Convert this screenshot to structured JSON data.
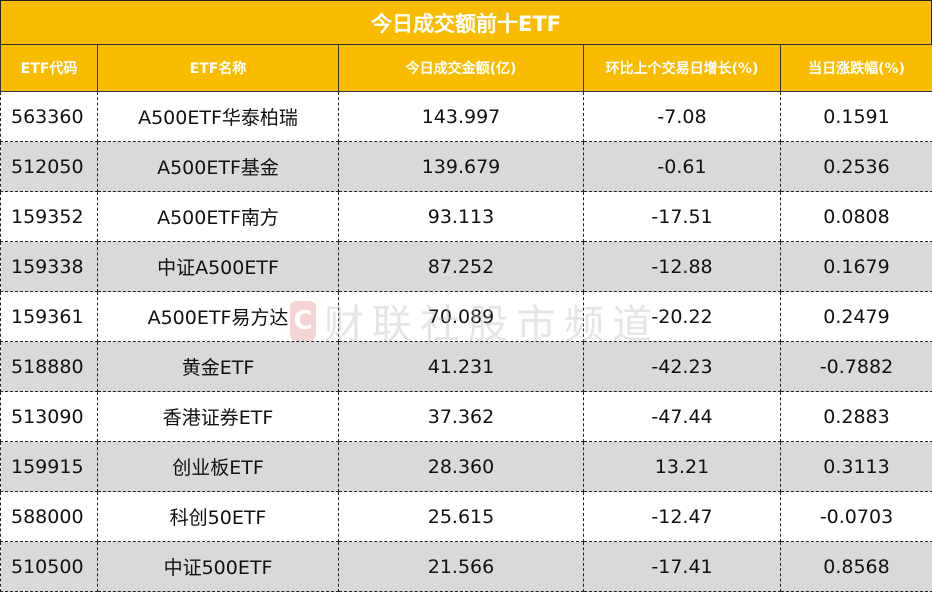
{
  "title": "今日成交额前十ETF",
  "headers": [
    "ETF代码",
    "ETF名称",
    "今日成交金额(亿)",
    "环比上个交易日增长(%)",
    "当日涨跌幅(%)"
  ],
  "rows": [
    [
      "563360",
      "A500ETF华泰柏瑞",
      "143.997",
      "-7.08",
      "0.1591"
    ],
    [
      "512050",
      "A500ETF基金",
      "139.679",
      "-0.61",
      "0.2536"
    ],
    [
      "159352",
      "A500ETF南方",
      "93.113",
      "-17.51",
      "0.0808"
    ],
    [
      "159338",
      "中证A500ETF",
      "87.252",
      "-12.88",
      "0.1679"
    ],
    [
      "159361",
      "A500ETF易方达",
      "70.089",
      "-20.22",
      "0.2479"
    ],
    [
      "518880",
      "黄金ETF",
      "41.231",
      "-42.23",
      "-0.7882"
    ],
    [
      "513090",
      "香港证券ETF",
      "37.362",
      "-47.44",
      "0.2883"
    ],
    [
      "159915",
      "创业板ETF",
      "28.360",
      "13.21",
      "0.3113"
    ],
    [
      "588000",
      "科创50ETF",
      "25.615",
      "-12.47",
      "-0.0703"
    ],
    [
      "510500",
      "中证500ETF",
      "21.566",
      "-17.41",
      "0.8568"
    ]
  ],
  "watermark": "财联社股市频道",
  "colors": {
    "header": "#F9BC00",
    "alt_row": "#D9D9D9"
  }
}
